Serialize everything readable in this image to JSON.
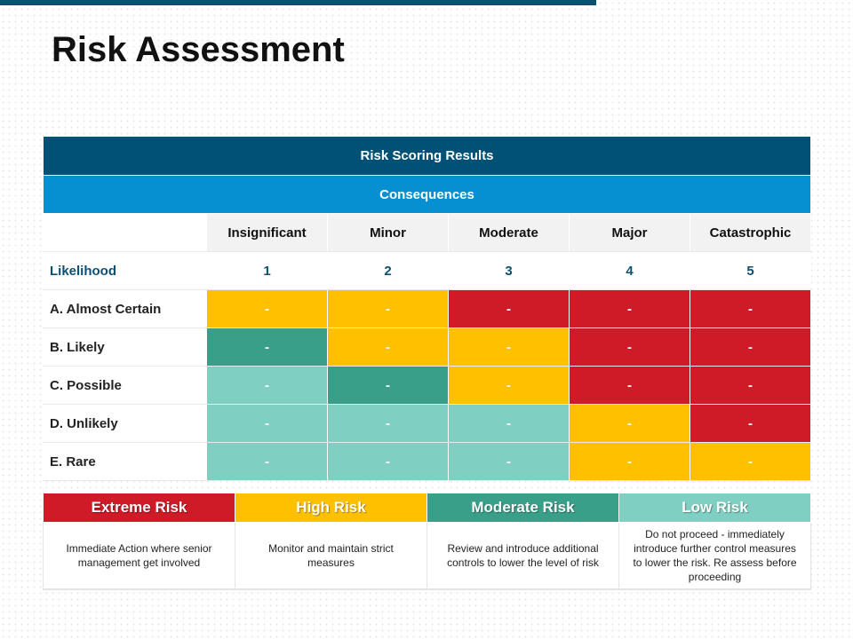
{
  "slide": {
    "title": "Risk Assessment"
  },
  "matrix": {
    "header": "Risk Scoring Results",
    "subheader": "Consequences",
    "consequences": [
      "Insignificant",
      "Minor",
      "Moderate",
      "Major",
      "Catastrophic"
    ],
    "likelihood_label": "Likelihood",
    "scores": [
      "1",
      "2",
      "3",
      "4",
      "5"
    ],
    "rows": [
      {
        "label": "A. Almost Certain",
        "cells": [
          "-",
          "-",
          "-",
          "-",
          "-"
        ],
        "levels": [
          "high",
          "high",
          "extreme",
          "extreme",
          "extreme"
        ]
      },
      {
        "label": "B. Likely",
        "cells": [
          "-",
          "-",
          "-",
          "-",
          "-"
        ],
        "levels": [
          "moderate",
          "high",
          "high",
          "extreme",
          "extreme"
        ]
      },
      {
        "label": "C. Possible",
        "cells": [
          "-",
          "-",
          "-",
          "-",
          "-"
        ],
        "levels": [
          "low",
          "moderate",
          "high",
          "extreme",
          "extreme"
        ]
      },
      {
        "label": "D. Unlikely",
        "cells": [
          "-",
          "-",
          "-",
          "-",
          "-"
        ],
        "levels": [
          "low",
          "low",
          "low",
          "high",
          "extreme"
        ]
      },
      {
        "label": "E. Rare",
        "cells": [
          "-",
          "-",
          "-",
          "-",
          "-"
        ],
        "levels": [
          "low",
          "low",
          "low",
          "high",
          "high"
        ]
      }
    ]
  },
  "colors": {
    "extreme": "#cf1a27",
    "high": "#ffc000",
    "moderate": "#3a9f89",
    "low": "#7fd0c2",
    "header_dark": "#005175",
    "header_blue": "#0690d1"
  },
  "legend": [
    {
      "label": "Extreme Risk",
      "level": "extreme",
      "description": "Immediate Action where senior management get involved"
    },
    {
      "label": "High Risk",
      "level": "high",
      "description": "Monitor and maintain strict measures"
    },
    {
      "label": "Moderate Risk",
      "level": "moderate",
      "description": "Review and introduce additional controls to lower the level of risk"
    },
    {
      "label": "Low Risk",
      "level": "low",
      "description": "Do not proceed - immediately introduce further control measures to lower the risk. Re assess before proceeding"
    }
  ]
}
